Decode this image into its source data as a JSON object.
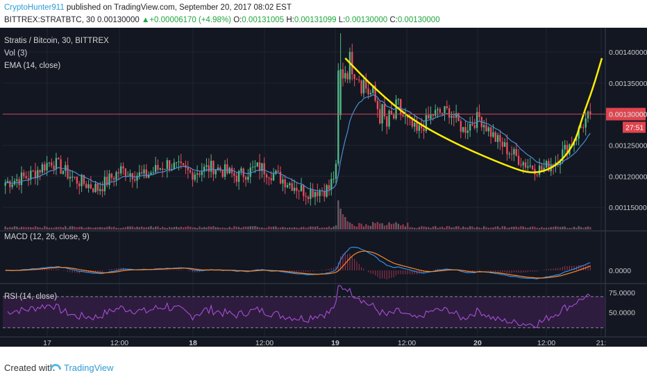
{
  "header": {
    "author": "CryptoHunter911",
    "published": " published on TradingView.com, September 20, 2017 08:02 EST",
    "symbol": "BITTREX:STRATBTC, 30",
    "last": "0.00130000",
    "change": "+0.00006170 (+4.98%)",
    "o_label": "O:",
    "o_value": "0.00131005",
    "h_label": "H:",
    "h_value": "0.00131099",
    "l_label": "L:",
    "l_value": "0.00130000",
    "c_label": "C:",
    "c_value": "0.00130000"
  },
  "footer": {
    "created_with": "Created with",
    "brand": "TradingView"
  },
  "colors": {
    "background": "#131722",
    "grid": "#1f2533",
    "up": "#53b987",
    "down": "#eb4d5c",
    "ema": "#4a8fd4",
    "cup": "#ffee00",
    "macd": "#2f8fe6",
    "signal": "#ff8a2b",
    "rsi": "#a64fd6",
    "rsi_band": "#3a1f4a",
    "price_line": "#c9485a"
  },
  "chart_data": {
    "type": "candlestick",
    "instrument": "Stratis / Bitcoin, 30, BITTREX",
    "indicators": [
      "Vol (3)",
      "EMA (14, close)"
    ],
    "price_axis": {
      "min": 0.00111,
      "max": 0.00143,
      "ticks": [
        "0.00140000",
        "0.00135000",
        "0.00130000",
        "0.00125000",
        "0.00120000",
        "0.00115000"
      ]
    },
    "time_axis": [
      "17",
      "12:00",
      "18",
      "12:00",
      "19",
      "12:00",
      "20",
      "12:00",
      "21:"
    ],
    "last_price_label": "0.00130000",
    "countdown_label": "27:51",
    "waypoints": [
      {
        "i": 0,
        "c": 0.00119
      },
      {
        "i": 10,
        "c": 0.0012
      },
      {
        "i": 20,
        "c": 0.001225
      },
      {
        "i": 30,
        "c": 0.001195
      },
      {
        "i": 40,
        "c": 0.00118
      },
      {
        "i": 50,
        "c": 0.00121
      },
      {
        "i": 60,
        "c": 0.0012
      },
      {
        "i": 70,
        "c": 0.00122
      },
      {
        "i": 80,
        "c": 0.001205
      },
      {
        "i": 90,
        "c": 0.001215
      },
      {
        "i": 100,
        "c": 0.0012
      },
      {
        "i": 110,
        "c": 0.001215
      },
      {
        "i": 120,
        "c": 0.001195
      },
      {
        "i": 130,
        "c": 0.001175
      },
      {
        "i": 140,
        "c": 0.00118
      },
      {
        "i": 143,
        "c": 0.00121
      },
      {
        "i": 145,
        "c": 0.001365
      },
      {
        "i": 150,
        "c": 0.001385
      },
      {
        "i": 155,
        "c": 0.00135
      },
      {
        "i": 160,
        "c": 0.00132
      },
      {
        "i": 165,
        "c": 0.00128
      },
      {
        "i": 170,
        "c": 0.001305
      },
      {
        "i": 178,
        "c": 0.00127
      },
      {
        "i": 185,
        "c": 0.0013
      },
      {
        "i": 192,
        "c": 0.001305
      },
      {
        "i": 198,
        "c": 0.001275
      },
      {
        "i": 205,
        "c": 0.001295
      },
      {
        "i": 212,
        "c": 0.00126
      },
      {
        "i": 218,
        "c": 0.00124
      },
      {
        "i": 225,
        "c": 0.00122
      },
      {
        "i": 232,
        "c": 0.00121
      },
      {
        "i": 238,
        "c": 0.001225
      },
      {
        "i": 245,
        "c": 0.001255
      },
      {
        "i": 250,
        "c": 0.001285
      },
      {
        "i": 253,
        "c": 0.0013
      }
    ],
    "candle_count": 254,
    "cup_curve": [
      [
        0.00139,
        147
      ],
      [
        0.00134,
        160
      ],
      [
        0.00129,
        176
      ],
      [
        0.00125,
        196
      ],
      [
        0.001218,
        216
      ],
      [
        0.001203,
        228
      ],
      [
        0.001215,
        238
      ],
      [
        0.00125,
        246
      ],
      [
        0.0013,
        250
      ],
      [
        0.00134,
        254
      ],
      [
        0.00139,
        258
      ]
    ],
    "macd": {
      "label": "MACD (12, 26, close, 9)",
      "tick": "0.0000"
    },
    "rsi": {
      "label": "RSI (14, close)",
      "ticks": [
        "75.0000",
        "50.0000"
      ],
      "upper": 70,
      "lower": 30
    }
  }
}
